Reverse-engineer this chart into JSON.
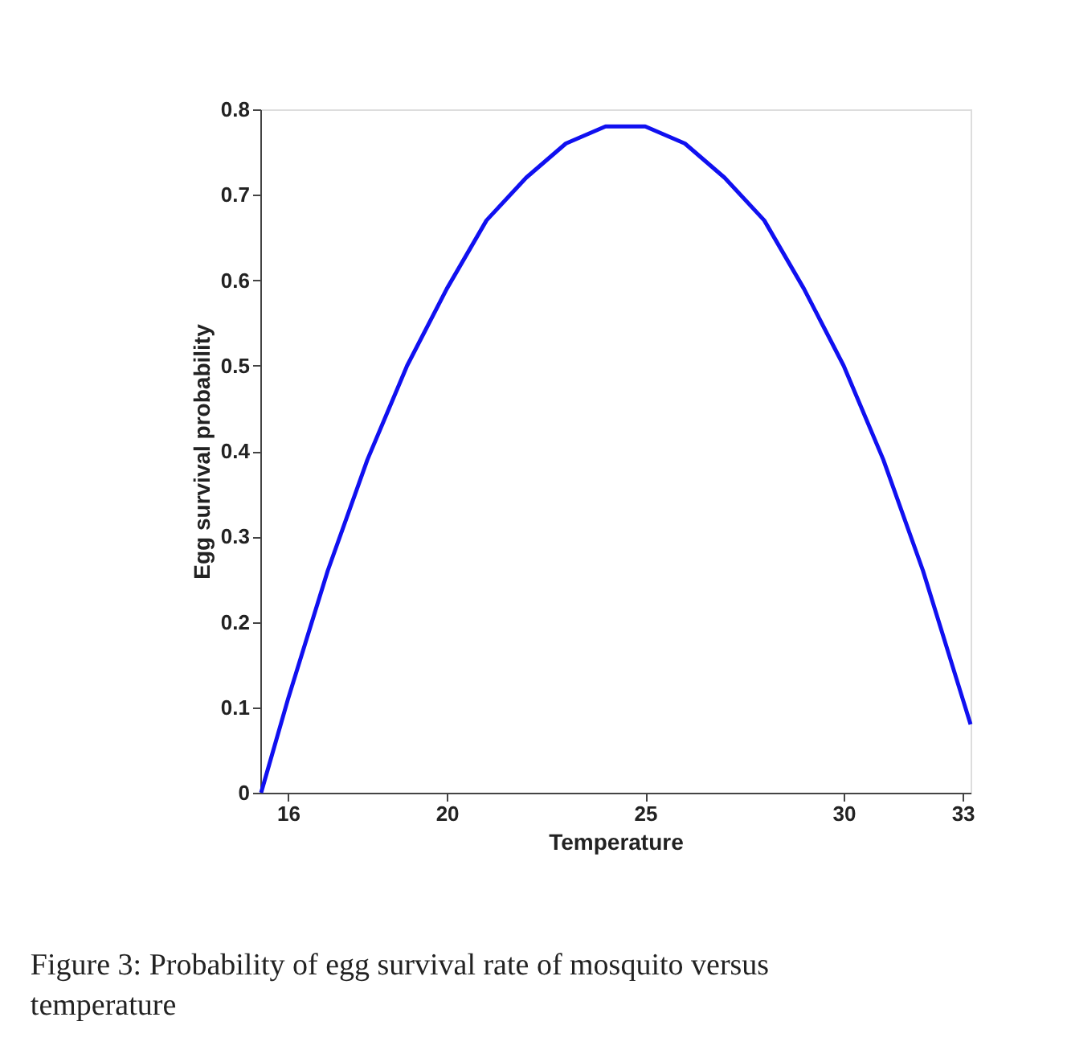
{
  "chart_data": {
    "type": "line",
    "xlabel": "Temperature",
    "ylabel": "Egg survival probability",
    "x": [
      15.32,
      16,
      17,
      18,
      19,
      20,
      21,
      22,
      23,
      24,
      25,
      26,
      27,
      28,
      29,
      30,
      31,
      32,
      33,
      33.2
    ],
    "series": [
      {
        "color": "#1010f0",
        "values": [
          0,
          0.11,
          0.26,
          0.39,
          0.5,
          0.59,
          0.67,
          0.72,
          0.76,
          0.78,
          0.78,
          0.76,
          0.72,
          0.67,
          0.59,
          0.5,
          0.39,
          0.26,
          0.11,
          0.08
        ]
      }
    ],
    "xlim": [
      15.3,
      33.2
    ],
    "xticks": [
      16,
      20,
      25,
      30,
      33
    ],
    "ylim": [
      0,
      0.8
    ],
    "yticks": [
      0,
      0.1,
      0.2,
      0.3,
      0.4,
      0.5,
      0.6,
      0.7,
      0.8
    ],
    "grid": false,
    "legend": false,
    "marker": "none",
    "line_style": "solid",
    "annotations": [
      "Figure 3: Probability of egg survival rate of mosquito versus temperature"
    ]
  }
}
